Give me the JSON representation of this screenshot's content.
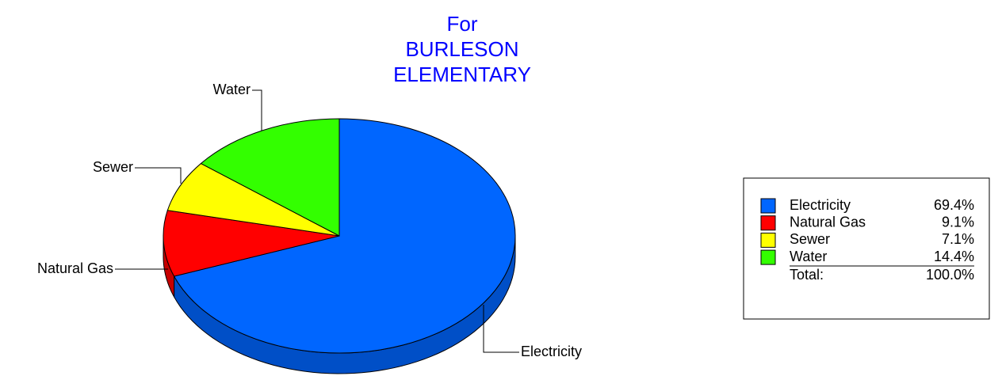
{
  "chart_data": {
    "type": "pie",
    "title": [
      "For",
      "BURLESON",
      "ELEMENTARY"
    ],
    "categories": [
      "Electricity",
      "Natural Gas",
      "Sewer",
      "Water"
    ],
    "values": [
      69.4,
      9.1,
      7.1,
      14.4
    ],
    "value_labels": [
      "69.4%",
      "9.1%",
      "7.1%",
      "14.4%"
    ],
    "colors": [
      "#0066ff",
      "#ff0000",
      "#ffff00",
      "#33ff00"
    ],
    "total": {
      "label": "Total:",
      "value": 100,
      "value_label": "100.0%"
    },
    "legend": "right"
  }
}
